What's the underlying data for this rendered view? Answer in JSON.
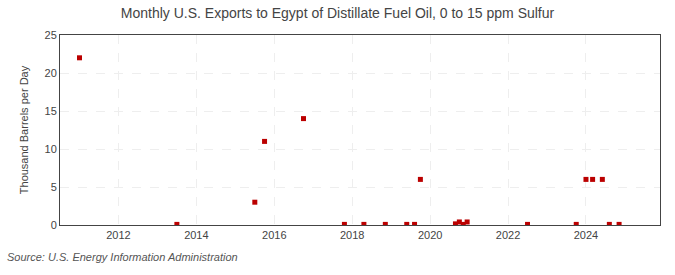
{
  "chart_data": {
    "type": "scatter",
    "title": "Monthly U.S. Exports to Egypt of Distillate Fuel Oil, 0 to 15 ppm Sulfur",
    "ylabel": "Thousand Barrels per Day",
    "annotations": [
      "Source: U.S. Energy Information Administration"
    ],
    "x": [
      2011.0,
      2013.5,
      2015.5,
      2015.75,
      2016.75,
      2017.8,
      2018.3,
      2018.85,
      2019.4,
      2019.6,
      2019.75,
      2020.65,
      2020.75,
      2020.85,
      2020.95,
      2022.5,
      2023.75,
      2024.0,
      2024.17,
      2024.42,
      2024.6,
      2024.85
    ],
    "values": [
      22.0,
      0.08,
      3.0,
      11.0,
      14.0,
      0.08,
      0.08,
      0.08,
      0.08,
      0.08,
      6.0,
      0.15,
      0.4,
      0.08,
      0.4,
      0.08,
      0.08,
      6.0,
      6.0,
      6.0,
      0.08,
      0.08
    ],
    "color": "#bb0000",
    "marker": "square",
    "xlim": [
      2010.5,
      2025.9
    ],
    "xticks": [
      2012,
      2014,
      2016,
      2018,
      2020,
      2022,
      2024
    ],
    "ylim": [
      0,
      25
    ],
    "yticks": [
      0,
      5,
      10,
      15,
      20,
      25
    ],
    "grid": true
  }
}
